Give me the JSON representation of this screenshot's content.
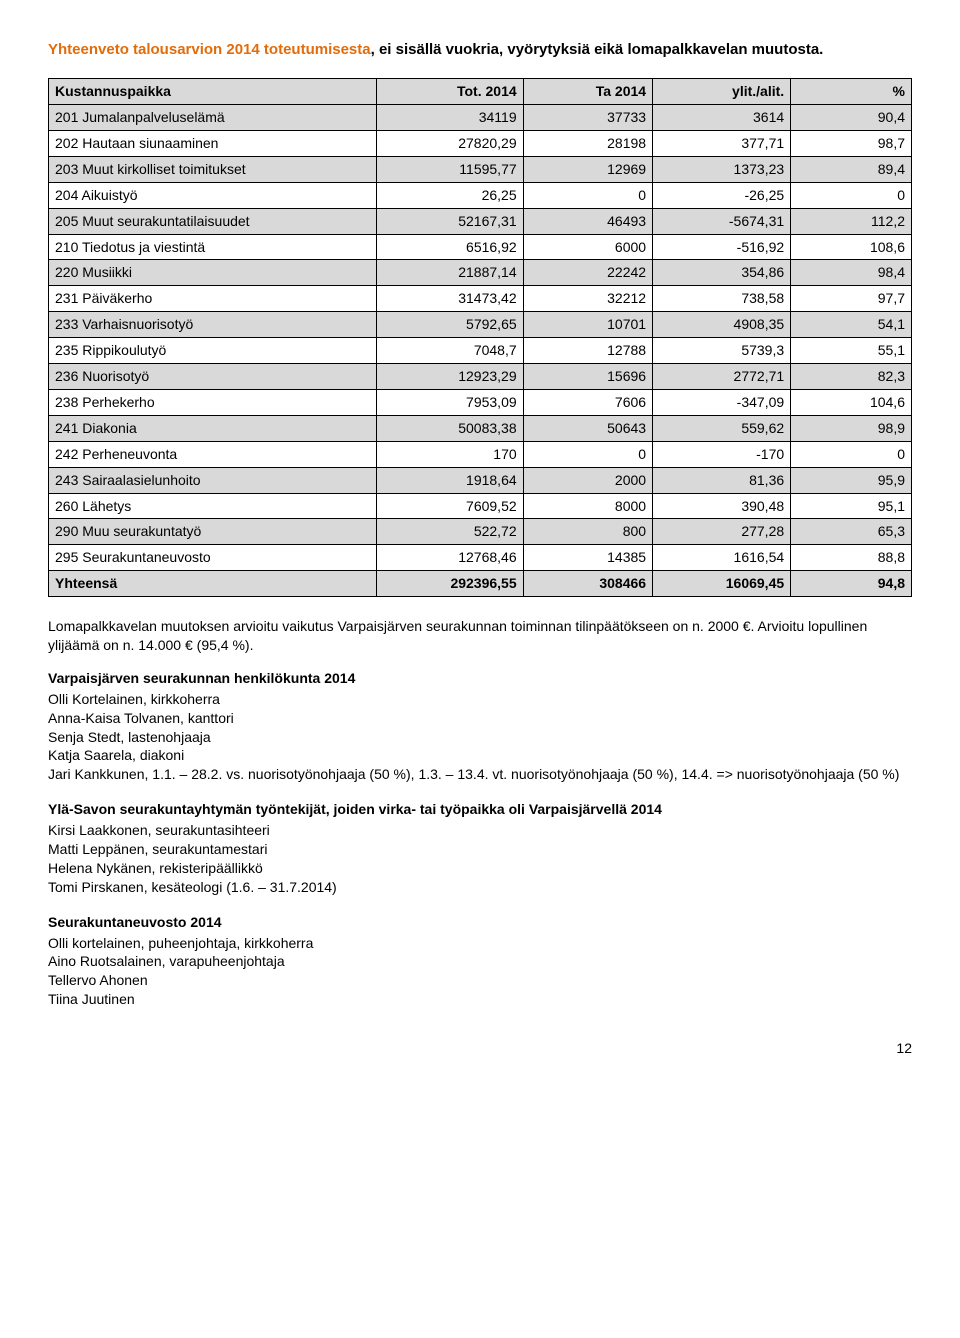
{
  "title": {
    "part1": "Yhteenveto talousarvion 2014 toteutumisesta",
    "part2": ", ei sisällä vuokria, vyörytyksiä eikä lomapalkkavelan muutosta."
  },
  "table": {
    "headers": [
      "Kustannuspaikka",
      "Tot. 2014",
      "Ta 2014",
      "ylit./alit.",
      "%"
    ],
    "col_widths": [
      "38%",
      "17%",
      "15%",
      "16%",
      "14%"
    ],
    "rows": [
      {
        "shaded": true,
        "c": [
          "201 Jumalanpalveluselämä",
          "34119",
          "37733",
          "3614",
          "90,4"
        ]
      },
      {
        "shaded": false,
        "c": [
          "202 Hautaan siunaaminen",
          "27820,29",
          "28198",
          "377,71",
          "98,7"
        ]
      },
      {
        "shaded": true,
        "c": [
          "203 Muut kirkolliset toimitukset",
          "11595,77",
          "12969",
          "1373,23",
          "89,4"
        ]
      },
      {
        "shaded": false,
        "c": [
          "204 Aikuistyö",
          "26,25",
          "0",
          "-26,25",
          "0"
        ]
      },
      {
        "shaded": true,
        "c": [
          "205 Muut seurakuntatilaisuudet",
          "52167,31",
          "46493",
          "-5674,31",
          "112,2"
        ]
      },
      {
        "shaded": false,
        "c": [
          "210 Tiedotus ja viestintä",
          "6516,92",
          "6000",
          "-516,92",
          "108,6"
        ]
      },
      {
        "shaded": true,
        "c": [
          "220 Musiikki",
          "21887,14",
          "22242",
          "354,86",
          "98,4"
        ]
      },
      {
        "shaded": false,
        "c": [
          "231 Päiväkerho",
          "31473,42",
          "32212",
          "738,58",
          "97,7"
        ]
      },
      {
        "shaded": true,
        "c": [
          "233 Varhaisnuorisotyö",
          "5792,65",
          "10701",
          "4908,35",
          "54,1"
        ]
      },
      {
        "shaded": false,
        "c": [
          "235 Rippikoulutyö",
          "7048,7",
          "12788",
          "5739,3",
          "55,1"
        ]
      },
      {
        "shaded": true,
        "c": [
          "236 Nuorisotyö",
          "12923,29",
          "15696",
          "2772,71",
          "82,3"
        ]
      },
      {
        "shaded": false,
        "c": [
          "238 Perhekerho",
          "7953,09",
          "7606",
          "-347,09",
          "104,6"
        ]
      },
      {
        "shaded": true,
        "c": [
          "241 Diakonia",
          "50083,38",
          "50643",
          "559,62",
          "98,9"
        ]
      },
      {
        "shaded": false,
        "c": [
          "242 Perheneuvonta",
          "170",
          "0",
          "-170",
          "0"
        ]
      },
      {
        "shaded": true,
        "c": [
          "243 Sairaalasielunhoito",
          "1918,64",
          "2000",
          "81,36",
          "95,9"
        ]
      },
      {
        "shaded": false,
        "c": [
          "260 Lähetys",
          "7609,52",
          "8000",
          "390,48",
          "95,1"
        ]
      },
      {
        "shaded": true,
        "c": [
          "290 Muu seurakuntatyö",
          "522,72",
          "800",
          "277,28",
          "65,3"
        ]
      },
      {
        "shaded": false,
        "c": [
          "295 Seurakuntaneuvosto",
          "12768,46",
          "14385",
          "1616,54",
          "88,8"
        ]
      }
    ],
    "total": [
      "Yhteensä",
      "292396,55",
      "308466",
      "16069,45",
      "94,8"
    ]
  },
  "para_after_table": "Lomapalkkavelan muutoksen arvioitu vaikutus Varpaisjärven seurakunnan toiminnan tilinpäätökseen on n. 2000 €. Arvioitu lopullinen ylijäämä on n. 14.000 € (95,4 %).",
  "staff": {
    "head": "Varpaisjärven seurakunnan henkilökunta 2014",
    "lines": [
      "Olli Kortelainen, kirkkoherra",
      "Anna-Kaisa Tolvanen, kanttori",
      "Senja Stedt, lastenohjaaja",
      "Katja Saarela, diakoni",
      "Jari Kankkunen, 1.1. – 28.2. vs. nuorisotyönohjaaja (50 %), 1.3. – 13.4. vt. nuorisotyönohjaaja (50 %), 14.4. => nuorisotyönohjaaja (50 %)"
    ]
  },
  "ylasavo": {
    "head": "Ylä-Savon seurakuntayhtymän työntekijät, joiden virka- tai työpaikka oli Varpaisjärvellä 2014",
    "lines": [
      "Kirsi Laakkonen, seurakuntasihteeri",
      "Matti Leppänen, seurakuntamestari",
      "Helena Nykänen, rekisteripäällikkö",
      "Tomi Pirskanen, kesäteologi (1.6. – 31.7.2014)"
    ]
  },
  "neuvosto": {
    "head": "Seurakuntaneuvosto 2014",
    "lines": [
      "Olli kortelainen, puheenjohtaja, kirkkoherra",
      "Aino Ruotsalainen, varapuheenjohtaja",
      "Tellervo Ahonen",
      "Tiina Juutinen"
    ]
  },
  "page_number": "12"
}
